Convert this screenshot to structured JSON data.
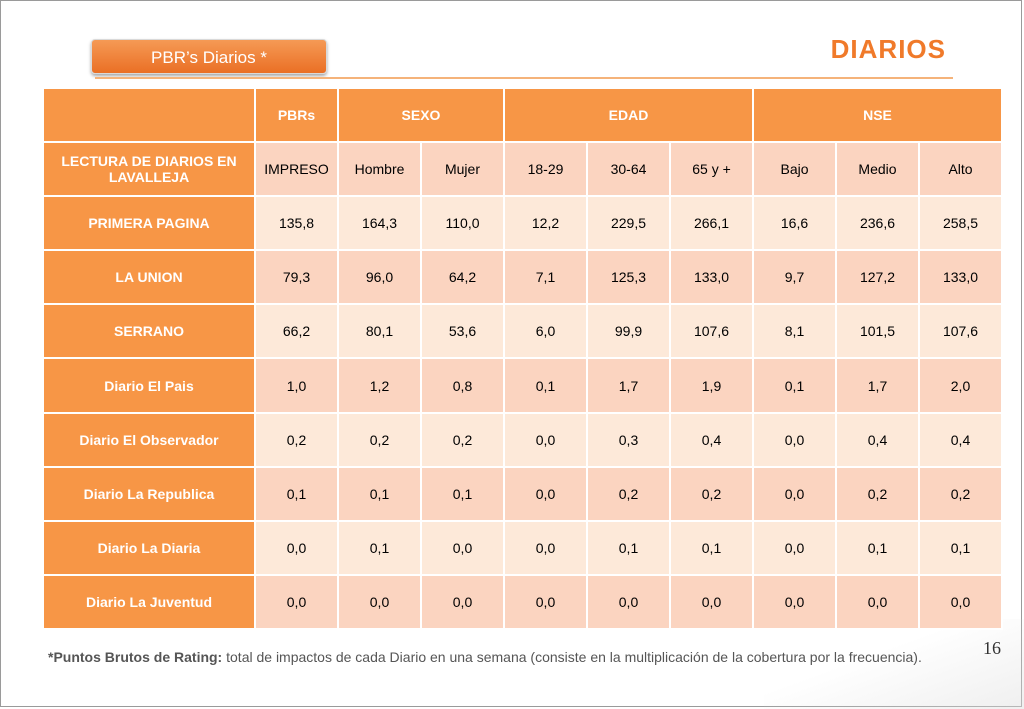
{
  "badge": {
    "label": "PBR’s Diarios  *"
  },
  "page_title": "DIARIOS",
  "table": {
    "group_headers": [
      "PBRs",
      "SEXO",
      "EDAD",
      "NSE"
    ],
    "row_label_header": "LECTURA DE DIARIOS EN LAVALLEJA",
    "sub_headers": [
      "IMPRESO",
      "Hombre",
      "Mujer",
      "18-29",
      "30-64",
      "65 y +",
      "Bajo",
      "Medio",
      "Alto"
    ],
    "rows": [
      {
        "label": "PRIMERA PAGINA",
        "values": [
          "135,8",
          "164,3",
          "110,0",
          "12,2",
          "229,5",
          "266,1",
          "16,6",
          "236,6",
          "258,5"
        ]
      },
      {
        "label": "LA UNION",
        "values": [
          "79,3",
          "96,0",
          "64,2",
          "7,1",
          "125,3",
          "133,0",
          "9,7",
          "127,2",
          "133,0"
        ]
      },
      {
        "label": "SERRANO",
        "values": [
          "66,2",
          "80,1",
          "53,6",
          "6,0",
          "99,9",
          "107,6",
          "8,1",
          "101,5",
          "107,6"
        ]
      },
      {
        "label": "Diario El Pais",
        "values": [
          "1,0",
          "1,2",
          "0,8",
          "0,1",
          "1,7",
          "1,9",
          "0,1",
          "1,7",
          "2,0"
        ]
      },
      {
        "label": "Diario El Observador",
        "values": [
          "0,2",
          "0,2",
          "0,2",
          "0,0",
          "0,3",
          "0,4",
          "0,0",
          "0,4",
          "0,4"
        ]
      },
      {
        "label": "Diario La Republica",
        "values": [
          "0,1",
          "0,1",
          "0,1",
          "0,0",
          "0,2",
          "0,2",
          "0,0",
          "0,2",
          "0,2"
        ]
      },
      {
        "label": "Diario La Diaria",
        "values": [
          "0,0",
          "0,1",
          "0,0",
          "0,0",
          "0,1",
          "0,1",
          "0,0",
          "0,1",
          "0,1"
        ]
      },
      {
        "label": "Diario La Juventud",
        "values": [
          "0,0",
          "0,0",
          "0,0",
          "0,0",
          "0,0",
          "0,0",
          "0,0",
          "0,0",
          "0,0"
        ]
      }
    ]
  },
  "footnote": {
    "term": "*Puntos Brutos de Rating:",
    "text": " total de impactos de cada Diario en una semana (consiste en la multiplicación de la cobertura por la frecuencia)."
  },
  "page_number": "16",
  "colors": {
    "accent": "#f79646",
    "title": "#f07a2a",
    "cell_light": "#fde9d9",
    "cell_dark": "#fbd4c0"
  }
}
